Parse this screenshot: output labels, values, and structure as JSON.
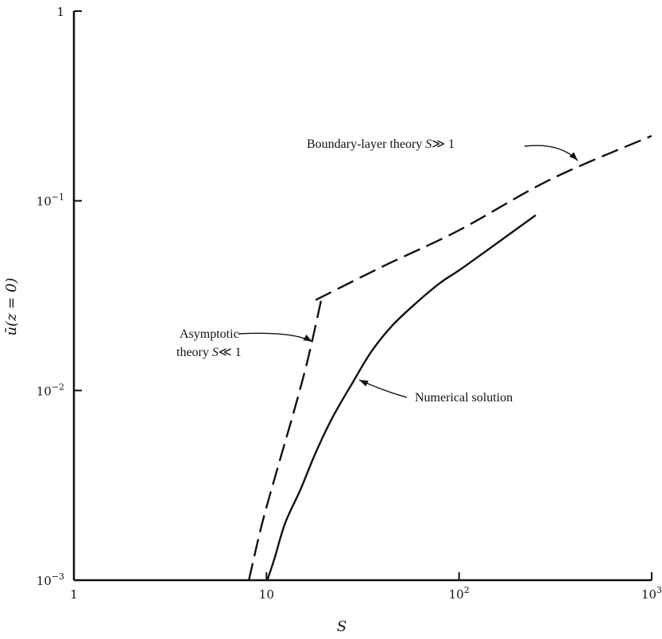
{
  "chart_data": {
    "type": "line",
    "title": "",
    "xlabel": "S",
    "ylabel": "ū(z = 0)",
    "x_scale": "log",
    "y_scale": "log",
    "xlim": [
      1,
      1000
    ],
    "ylim": [
      0.001,
      1
    ],
    "grid": false,
    "x_ticks": [
      {
        "value": 1,
        "base": "1",
        "exp": ""
      },
      {
        "value": 10,
        "base": "10",
        "exp": ""
      },
      {
        "value": 100,
        "base": "10",
        "exp": "2"
      },
      {
        "value": 1000,
        "base": "10",
        "exp": "3"
      }
    ],
    "y_ticks": [
      {
        "value": 0.001,
        "base": "10",
        "exp": "−3"
      },
      {
        "value": 0.01,
        "base": "10",
        "exp": "−2"
      },
      {
        "value": 0.1,
        "base": "10",
        "exp": "−1"
      },
      {
        "value": 1,
        "base": "1",
        "exp": ""
      }
    ],
    "series": [
      {
        "style": "solid",
        "points": [
          [
            10.1,
            0.001
          ],
          [
            11,
            0.0013
          ],
          [
            12.5,
            0.002
          ],
          [
            15,
            0.003
          ],
          [
            18,
            0.0047
          ],
          [
            22,
            0.0072
          ],
          [
            28,
            0.011
          ],
          [
            35,
            0.016
          ],
          [
            45,
            0.022
          ],
          [
            60,
            0.029
          ],
          [
            80,
            0.037
          ],
          [
            100,
            0.043
          ],
          [
            130,
            0.052
          ],
          [
            180,
            0.066
          ],
          [
            250,
            0.084
          ]
        ]
      },
      {
        "style": "dashed",
        "points": [
          [
            8.1,
            0.001
          ],
          [
            9.5,
            0.002
          ],
          [
            11.5,
            0.004
          ],
          [
            14,
            0.008
          ],
          [
            16.5,
            0.015
          ],
          [
            19.5,
            0.032
          ]
        ]
      },
      {
        "style": "dashed",
        "points": [
          [
            18,
            0.03
          ],
          [
            40,
            0.045
          ],
          [
            100,
            0.07
          ],
          [
            300,
            0.13
          ],
          [
            1000,
            0.22
          ]
        ]
      }
    ],
    "annotations": [
      {
        "id": "boundary",
        "lines": [
          "Boundary-layer theory ",
          "S",
          "≫1"
        ]
      },
      {
        "id": "asymptotic",
        "lines": [
          "Asymptotic",
          "theory ",
          "S",
          "≪1"
        ]
      },
      {
        "id": "numerical",
        "lines": [
          "Numerical solution"
        ]
      }
    ]
  },
  "labels": {
    "boundary_text": "Boundary-layer theory ",
    "boundary_var": "S",
    "boundary_rel": "≫ 1",
    "asym_line1": "Asymptotic",
    "asym_line2": "theory ",
    "asym_var": "S",
    "asym_rel": "≪ 1",
    "numerical": "Numerical solution",
    "xlabel": "S",
    "ylabel": "ū(z = 0)"
  }
}
